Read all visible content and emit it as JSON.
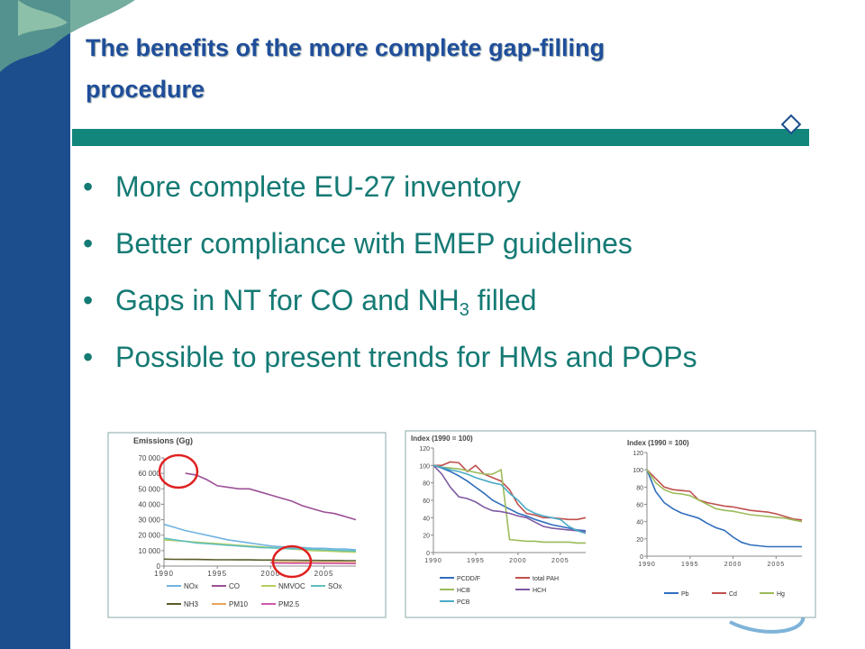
{
  "slide": {
    "title": "The benefits of the more complete gap-filling procedure",
    "bullets": [
      {
        "text": "More complete EU-27 inventory"
      },
      {
        "text": "Better compliance with EMEP guidelines"
      },
      {
        "parts": [
          "Gaps in NT for CO and NH",
          "3",
          " filled"
        ]
      },
      {
        "text": "Possible to present trends for HMs and POPs"
      }
    ]
  },
  "charts": [
    {
      "type": "line",
      "title": "Emissions (Gg)",
      "x": [
        1990,
        1991,
        1992,
        1993,
        1994,
        1995,
        1996,
        1997,
        1998,
        1999,
        2000,
        2001,
        2002,
        2003,
        2004,
        2005,
        2006,
        2007,
        2008
      ],
      "xlim": [
        1990,
        2008
      ],
      "xticks": [
        1990,
        1995,
        2000,
        2005
      ],
      "ylim": [
        0,
        70000
      ],
      "yticks": [
        0,
        {
          "value": 10000,
          "label": "10 000"
        },
        {
          "value": 20000,
          "label": "20 000"
        },
        {
          "value": 30000,
          "label": "30 000"
        },
        {
          "value": 40000,
          "label": "40 000"
        },
        {
          "value": 50000,
          "label": "50 000"
        },
        {
          "value": 60000,
          "label": "60 000"
        },
        {
          "value": 70000,
          "label": "70 000"
        }
      ],
      "series": [
        {
          "name": "NOx",
          "color": "#6fb3e0",
          "values": [
            27000,
            25000,
            23000,
            21500,
            20000,
            18500,
            17000,
            16000,
            15000,
            14000,
            13000,
            12500,
            12000,
            12000,
            11500,
            11500,
            11000,
            11000,
            10500
          ]
        },
        {
          "name": "CO",
          "color": "#9b4f96",
          "values": [
            null,
            null,
            60000,
            59000,
            56000,
            52000,
            51000,
            50000,
            50000,
            48000,
            46000,
            44000,
            42000,
            39000,
            37000,
            35000,
            34000,
            32000,
            30000
          ]
        },
        {
          "name": "NMVOC",
          "color": "#b5cf5e",
          "values": [
            17000,
            16500,
            16000,
            15500,
            15000,
            14500,
            14000,
            13500,
            13000,
            12500,
            12000,
            11500,
            11000,
            10500,
            10000,
            9800,
            9500,
            9200,
            9000
          ]
        },
        {
          "name": "SOx",
          "color": "#5fbfbf",
          "values": [
            18000,
            17000,
            16000,
            15000,
            14500,
            14000,
            13500,
            13000,
            12500,
            12000,
            11800,
            11500,
            11200,
            11000,
            10800,
            10500,
            10200,
            10000,
            9800
          ]
        },
        {
          "name": "NH3",
          "color": "#5a5a2a",
          "values": [
            4500,
            4400,
            4300,
            4300,
            4200,
            4100,
            4100,
            4000,
            4000,
            3900,
            3900,
            3800,
            3800,
            3700,
            3700,
            3600,
            3600,
            3500,
            3500
          ]
        },
        {
          "name": "PM10",
          "color": "#e8a35a",
          "values": [
            null,
            null,
            null,
            null,
            null,
            null,
            null,
            null,
            null,
            null,
            2600,
            2500,
            2500,
            2400,
            2400,
            2300,
            2300,
            2200,
            2200
          ]
        },
        {
          "name": "PM2.5",
          "color": "#d05ab0",
          "values": [
            null,
            null,
            null,
            null,
            null,
            null,
            null,
            null,
            null,
            null,
            1900,
            1850,
            1800,
            1800,
            1750,
            1700,
            1700,
            1650,
            1600
          ]
        }
      ]
    },
    {
      "type": "line",
      "title": "Index (1990 = 100)",
      "x": [
        1990,
        1991,
        1992,
        1993,
        1994,
        1995,
        1996,
        1997,
        1998,
        1999,
        2000,
        2001,
        2002,
        2003,
        2004,
        2005,
        2006,
        2007,
        2008
      ],
      "xlim": [
        1990,
        2008
      ],
      "xticks": [
        1990,
        1995,
        2000,
        2005
      ],
      "ylim": [
        0,
        120
      ],
      "yticks": [
        0,
        20,
        40,
        60,
        80,
        100,
        120
      ],
      "series": [
        {
          "name": "PCDD/F",
          "color": "#2f6ebd",
          "values": [
            100,
            97,
            93,
            88,
            82,
            75,
            68,
            60,
            55,
            50,
            45,
            42,
            38,
            35,
            32,
            30,
            28,
            26,
            25
          ]
        },
        {
          "name": "total PAH",
          "color": "#c0504d",
          "values": [
            100,
            100,
            104,
            103,
            93,
            100,
            90,
            86,
            82,
            72,
            55,
            45,
            43,
            40,
            40,
            39,
            38,
            38,
            40
          ]
        },
        {
          "name": "HCB",
          "color": "#9bbb59",
          "values": [
            100,
            98,
            97,
            96,
            94,
            92,
            90,
            90,
            95,
            15,
            14,
            13,
            13,
            12,
            12,
            12,
            12,
            11,
            11
          ]
        },
        {
          "name": "HCH",
          "color": "#7f5aa2",
          "values": [
            100,
            90,
            75,
            64,
            62,
            58,
            52,
            48,
            47,
            45,
            42,
            40,
            35,
            30,
            28,
            27,
            26,
            25,
            24
          ]
        },
        {
          "name": "PCB",
          "color": "#4bacc6",
          "values": [
            100,
            98,
            95,
            93,
            90,
            86,
            83,
            80,
            78,
            68,
            60,
            50,
            45,
            42,
            40,
            38,
            30,
            25,
            22
          ]
        }
      ]
    },
    {
      "type": "line",
      "title": "Index (1990 = 100)",
      "x": [
        1990,
        1991,
        1992,
        1993,
        1994,
        1995,
        1996,
        1997,
        1998,
        1999,
        2000,
        2001,
        2002,
        2003,
        2004,
        2005,
        2006,
        2007,
        2008
      ],
      "xlim": [
        1990,
        2008
      ],
      "xticks": [
        1990,
        1995,
        2000,
        2005
      ],
      "ylim": [
        0,
        120
      ],
      "yticks": [
        0,
        20,
        40,
        60,
        80,
        100,
        120
      ],
      "series": [
        {
          "name": "Pb",
          "color": "#2f6ebd",
          "values": [
            100,
            75,
            62,
            55,
            50,
            47,
            44,
            38,
            33,
            30,
            22,
            16,
            13,
            12,
            11,
            11,
            11,
            11,
            11
          ]
        },
        {
          "name": "Cd",
          "color": "#c0504d",
          "values": [
            100,
            90,
            80,
            77,
            76,
            75,
            65,
            62,
            60,
            58,
            57,
            55,
            53,
            52,
            51,
            49,
            46,
            43,
            42
          ]
        },
        {
          "name": "Hg",
          "color": "#9bbb59",
          "values": [
            100,
            85,
            77,
            73,
            72,
            70,
            65,
            60,
            55,
            53,
            52,
            50,
            48,
            47,
            46,
            45,
            44,
            42,
            40
          ]
        }
      ]
    }
  ]
}
